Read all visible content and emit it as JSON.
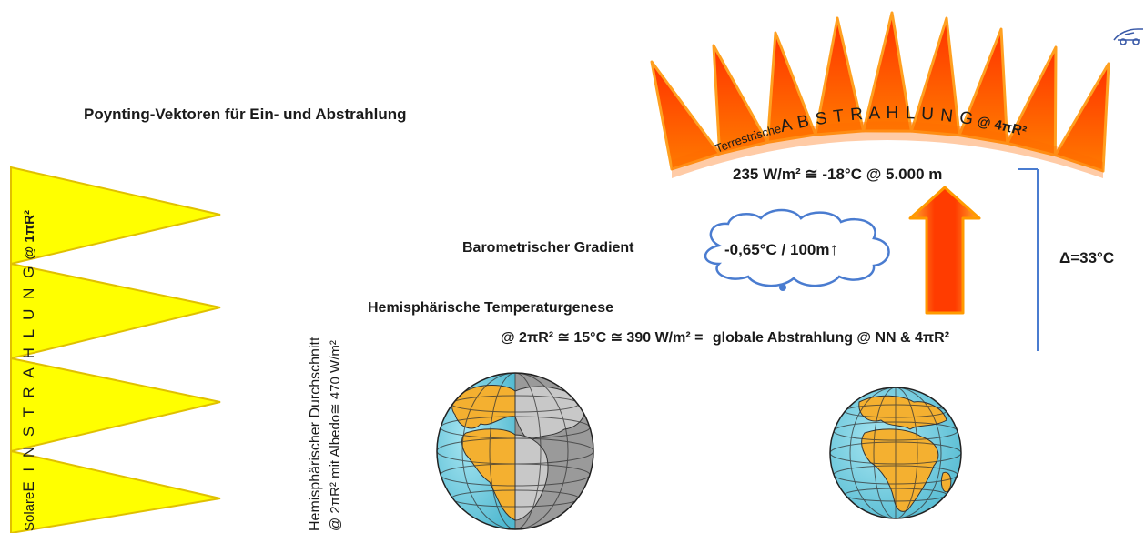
{
  "title": "Poynting-Vektoren für Ein- und Abstrahlung",
  "solar_label": {
    "prefix": "Solare",
    "spaced": "E I N S T R A H L U N G",
    "suffix": "@ 1πR²"
  },
  "hemi_label": {
    "line1": "Hemisphärischer Durchschnitt",
    "line2": "@ 2πR² mit Albedo≅ 470 W/m²"
  },
  "terrestrial_label": {
    "small": "Terrestrische",
    "big": "A B S T R A H L U N G",
    "suffix": "@ 4πR²"
  },
  "arc_value": "235 W/m² ≅ -18°C @ 5.000 m",
  "barometric": {
    "label": "Barometrischer Gradient",
    "cloud_text": "-0,65°C / 100m",
    "arrow": "↑"
  },
  "delta": "Δ=33°C",
  "hemi_temp": "Hemisphärische Temperaturgenese",
  "formula": {
    "left": "@ 2πR² ≅ 15°C ≅ 390 W/m² =",
    "right": "globale Abstrahlung @ NN & 4πR²"
  },
  "colors": {
    "solar_yellow": "#ffff00",
    "solar_edge": "#e8c800",
    "flame_red": "#ff3c00",
    "flame_orange": "#ffa020",
    "ocean": "#6ecde0",
    "land": "#f4b030",
    "dark_side": "#8c8c8c",
    "cloud_edge": "#4a7cd0"
  },
  "icons": {
    "logo": "car-logo-icon",
    "cloud": "cloud-icon",
    "arrow": "up-arrow-icon",
    "globe": "globe-icon"
  }
}
